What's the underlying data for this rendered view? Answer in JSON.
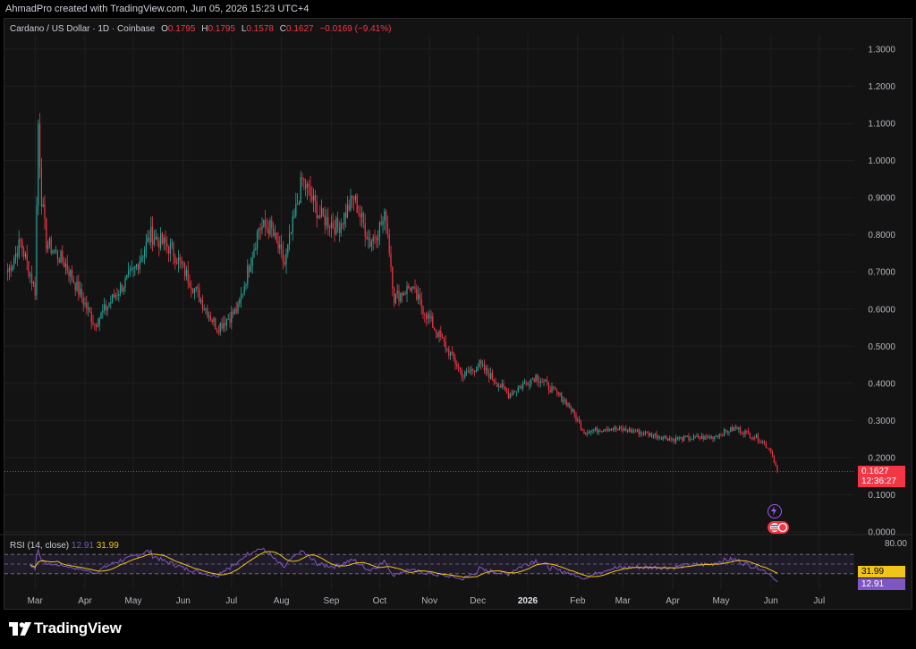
{
  "header": {
    "caption": "AhmadPro created with TradingView.com, Jun 05, 2026 15:23 UTC+4"
  },
  "legend": {
    "symbol": "Cardano / US Dollar · 1D · Coinbase",
    "open_label": "O",
    "open": "0.1795",
    "high_label": "H",
    "high": "0.1795",
    "low_label": "L",
    "low": "0.1578",
    "close_label": "C",
    "close": "0.1627",
    "change": "−0.0169 (−9.41%)"
  },
  "rsi": {
    "title": "RSI (14, close)",
    "value": "12.91",
    "ma_value": "31.99",
    "levels": [
      70,
      50,
      30
    ],
    "top_label": "80.00"
  },
  "badges": {
    "last_price": "0.1627",
    "countdown": "12:36:27",
    "rsi_ma": "31.99",
    "rsi": "12.91"
  },
  "footer": {
    "brand": "TradingView"
  },
  "colors": {
    "up": "#26a69a",
    "down": "#f23645",
    "rsi_line": "#7e57c2",
    "rsi_ma": "#f0c419",
    "background": "#131313",
    "grid": "#1f1f1f"
  },
  "icons": [
    "tradingview-logo-icon",
    "lightning-icon",
    "flag-icon"
  ],
  "chart_data": {
    "type": "candlestick",
    "title": "Cardano / US Dollar · 1D · Coinbase",
    "y_axis": {
      "ticks": [
        "1.3000",
        "1.2000",
        "1.1000",
        "1.0000",
        "0.9000",
        "0.8000",
        "0.7000",
        "0.6000",
        "0.5000",
        "0.4000",
        "0.3000",
        "0.2000",
        "0.1000",
        "0.0000"
      ],
      "range": [
        0,
        1.3
      ],
      "position": "right"
    },
    "x_axis": {
      "ticks": [
        "Mar",
        "Apr",
        "May",
        "Jun",
        "Jul",
        "Aug",
        "Sep",
        "Oct",
        "Nov",
        "Dec",
        "2026",
        "Feb",
        "Mar",
        "Apr",
        "May",
        "Jun",
        "Jul"
      ]
    },
    "grid": true,
    "last_price": 0.1627,
    "price_anchors": [
      [
        "2025-02-12",
        0.7
      ],
      [
        "2025-02-20",
        0.78
      ],
      [
        "2025-03-01",
        0.65
      ],
      [
        "2025-03-03",
        1.1
      ],
      [
        "2025-03-05",
        0.9
      ],
      [
        "2025-03-08",
        0.78
      ],
      [
        "2025-03-20",
        0.72
      ],
      [
        "2025-04-07",
        0.56
      ],
      [
        "2025-04-20",
        0.64
      ],
      [
        "2025-05-01",
        0.7
      ],
      [
        "2025-05-12",
        0.8
      ],
      [
        "2025-05-25",
        0.76
      ],
      [
        "2025-06-10",
        0.64
      ],
      [
        "2025-06-22",
        0.55
      ],
      [
        "2025-07-05",
        0.6
      ],
      [
        "2025-07-18",
        0.82
      ],
      [
        "2025-07-25",
        0.82
      ],
      [
        "2025-08-03",
        0.72
      ],
      [
        "2025-08-14",
        0.95
      ],
      [
        "2025-08-25",
        0.85
      ],
      [
        "2025-09-05",
        0.82
      ],
      [
        "2025-09-15",
        0.9
      ],
      [
        "2025-09-25",
        0.78
      ],
      [
        "2025-10-05",
        0.85
      ],
      [
        "2025-10-10",
        0.63
      ],
      [
        "2025-10-20",
        0.66
      ],
      [
        "2025-11-04",
        0.55
      ],
      [
        "2025-11-22",
        0.42
      ],
      [
        "2025-12-02",
        0.45
      ],
      [
        "2025-12-20",
        0.37
      ],
      [
        "2026-01-06",
        0.42
      ],
      [
        "2026-01-25",
        0.35
      ],
      [
        "2026-02-05",
        0.27
      ],
      [
        "2026-02-20",
        0.28
      ],
      [
        "2026-03-10",
        0.27
      ],
      [
        "2026-04-01",
        0.25
      ],
      [
        "2026-04-25",
        0.255
      ],
      [
        "2026-05-10",
        0.28
      ],
      [
        "2026-05-25",
        0.25
      ],
      [
        "2026-06-01",
        0.22
      ],
      [
        "2026-06-05",
        0.1627
      ]
    ],
    "rsi": {
      "period": 14,
      "last": 12.91,
      "ma_last": 31.99,
      "levels": [
        70,
        50,
        30
      ],
      "range": [
        0,
        100
      ]
    }
  }
}
